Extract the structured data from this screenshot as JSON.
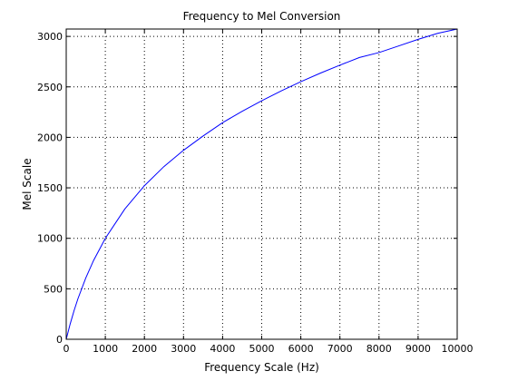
{
  "chart_data": {
    "type": "line",
    "title": "Frequency to Mel Conversion",
    "xlabel": "Frequency Scale (Hz)",
    "ylabel": "Mel Scale",
    "xlim": [
      0,
      10000
    ],
    "ylim": [
      0,
      3073
    ],
    "grid": true,
    "grid_style": "dotted",
    "x_ticks": [
      0,
      1000,
      2000,
      3000,
      4000,
      5000,
      6000,
      7000,
      8000,
      9000,
      10000
    ],
    "y_ticks": [
      0,
      500,
      1000,
      1500,
      2000,
      2500,
      3000
    ],
    "series": [
      {
        "color": "#0000ff",
        "x": [
          0,
          100,
          200,
          300,
          500,
          700,
          1000,
          1500,
          2000,
          2500,
          3000,
          3500,
          4000,
          4500,
          5000,
          5500,
          6000,
          6500,
          7000,
          7500,
          8000,
          8500,
          9000,
          9500,
          10000
        ],
        "values": [
          0,
          150,
          283,
          402,
          607,
          781,
          1000,
          1291,
          1521,
          1711,
          1872,
          2013,
          2146,
          2258,
          2363,
          2460,
          2551,
          2636,
          2715,
          2791,
          2840,
          2905,
          2971,
          3030,
          3073
        ]
      }
    ]
  }
}
